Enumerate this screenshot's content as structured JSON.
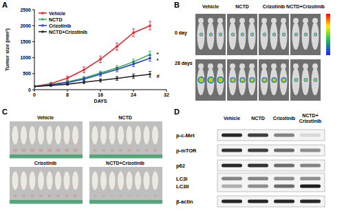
{
  "chart_data": {
    "type": "line",
    "panel_label": "A",
    "y_label": "Tumor size (mm³)",
    "x_label": "DAYS",
    "x": [
      0,
      4,
      8,
      12,
      16,
      20,
      24,
      28
    ],
    "series": [
      {
        "name": "Vehicle",
        "color": "#e8262a",
        "marker": "circle",
        "values": [
          100,
          190,
          360,
          620,
          950,
          1350,
          1780,
          2000
        ],
        "errors": [
          20,
          40,
          60,
          90,
          100,
          110,
          120,
          130
        ]
      },
      {
        "name": "NCTD",
        "color": "#2fb34a",
        "marker": "circle",
        "values": [
          100,
          160,
          240,
          360,
          520,
          680,
          870,
          1100
        ],
        "errors": [
          20,
          30,
          40,
          50,
          60,
          70,
          80,
          100
        ]
      },
      {
        "name": "Crizotinib",
        "color": "#2b3fd6",
        "marker": "circle",
        "values": [
          100,
          150,
          220,
          330,
          480,
          630,
          800,
          980
        ],
        "errors": [
          20,
          30,
          40,
          50,
          60,
          70,
          80,
          90
        ]
      },
      {
        "name": "NCTD+Crizotinib",
        "color": "#222222",
        "marker": "circle",
        "values": [
          100,
          130,
          170,
          230,
          290,
          350,
          420,
          480
        ],
        "errors": [
          20,
          25,
          30,
          40,
          50,
          60,
          70,
          90
        ]
      }
    ],
    "xlim": [
      0,
      32
    ],
    "xticks": [
      0,
      8,
      16,
      24,
      32
    ],
    "ylim": [
      0,
      2500
    ],
    "yticks": [
      0,
      500,
      1000,
      1500,
      2000,
      2500
    ],
    "legend": "upper left",
    "annotations": [
      {
        "text": "*",
        "x": 29.6,
        "y": 1120
      },
      {
        "text": "*",
        "x": 29.6,
        "y": 920
      },
      {
        "text": "#",
        "x": 29.6,
        "y": 440
      }
    ]
  },
  "imaging": {
    "label": "B",
    "columns": [
      "Vehicle",
      "NCTD",
      "Crizotinib",
      "NCTD+Crizotinib"
    ],
    "rows": [
      "0 day",
      "28 days"
    ]
  },
  "photos": {
    "label": "C",
    "groups": [
      "Vehicle",
      "NCTD",
      "Crizotinib",
      "NCTD+Crizotinib"
    ]
  },
  "blot": {
    "label": "D",
    "columns": [
      "Vehicle",
      "NCTD",
      "Crizotinib",
      "NCTD+Crizotinib"
    ],
    "rows": [
      {
        "name": "p-c-Met",
        "intensity": [
          0.9,
          0.8,
          0.5,
          0.12
        ]
      },
      {
        "name": "p-mTOR",
        "intensity": [
          0.85,
          0.8,
          0.6,
          0.45
        ]
      },
      {
        "name": "p62",
        "intensity": [
          0.9,
          0.85,
          0.6,
          0.5
        ]
      },
      {
        "name": "LC3I",
        "intensity": [
          0.5,
          0.5,
          0.45,
          0.45
        ]
      },
      {
        "name": "LC3II",
        "intensity": [
          0.3,
          0.45,
          0.6,
          0.95
        ]
      },
      {
        "name": "β-actin",
        "intensity": [
          0.9,
          0.9,
          0.9,
          0.9
        ]
      }
    ]
  }
}
